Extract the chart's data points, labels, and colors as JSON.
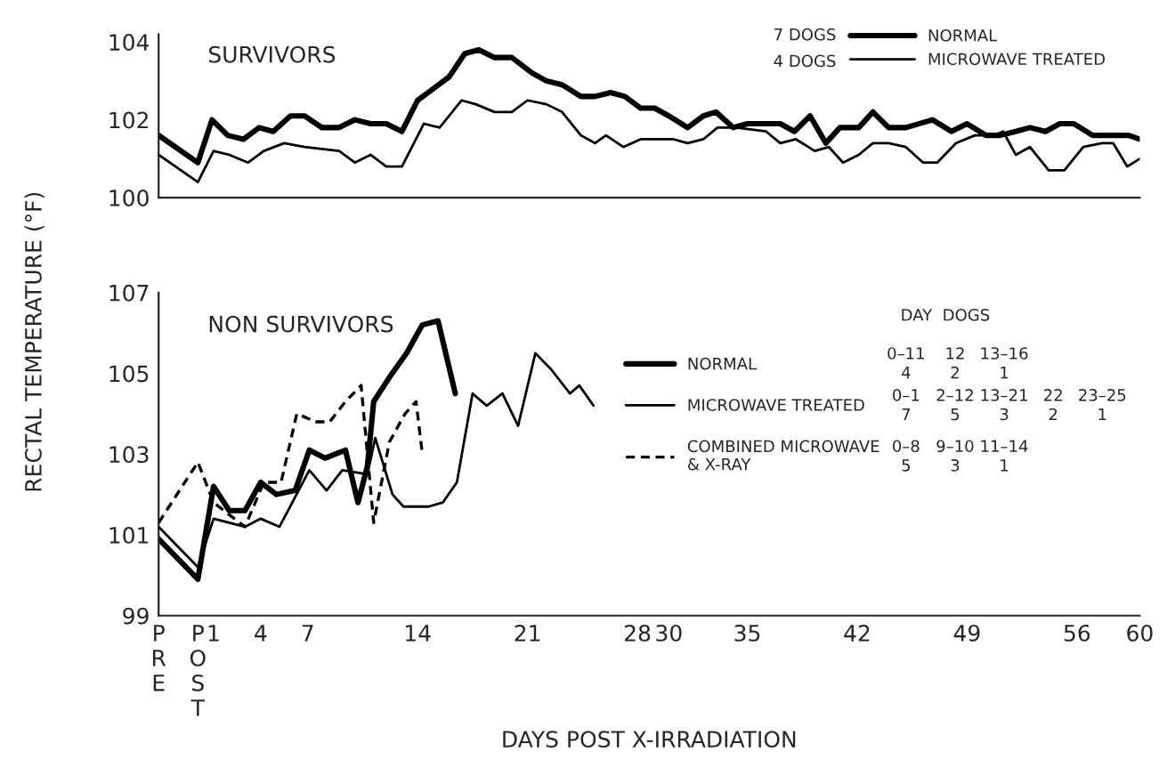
{
  "chart_data": [
    {
      "type": "line",
      "title": "SURVIVORS",
      "ylabel": "RECTAL TEMPERATURE (°F)",
      "xlim": [
        -2.5,
        60
      ],
      "ylim": [
        100,
        104.2
      ],
      "yticks": [
        100,
        102,
        104
      ],
      "tick_labels": "y",
      "grid": false,
      "legend": "top right",
      "marker": "none",
      "annotations": [
        "7 DOGS",
        "4 DOGS"
      ],
      "series": [
        {
          "name": "NORMAL",
          "color": "#000000",
          "line_style": "solid",
          "x": [
            -2.5,
            0,
            0.9,
            1.9,
            2.9,
            3.9,
            4.8,
            5.9,
            6.8,
            7.9,
            9,
            10,
            11,
            12,
            13,
            14,
            15,
            16,
            17,
            17.9,
            18.9,
            20,
            21.3,
            22.2,
            23.2,
            24.4,
            25.3,
            26.3,
            27.2,
            28.2,
            29.1,
            30,
            31.2,
            32.2,
            33,
            34.1,
            35,
            36.2,
            37.1,
            38,
            39,
            40,
            40.9,
            42.1,
            43,
            44,
            45.1,
            46.8,
            48,
            49,
            50.2,
            51.1,
            52.1,
            53,
            54,
            54.9,
            55.8,
            57,
            58.2,
            59.3,
            60
          ],
          "values": [
            101.6,
            100.9,
            102.0,
            101.6,
            101.5,
            101.8,
            101.7,
            102.1,
            102.1,
            101.8,
            101.8,
            102.0,
            101.9,
            101.9,
            101.7,
            102.5,
            102.8,
            103.1,
            103.7,
            103.8,
            103.6,
            103.6,
            103.2,
            103.0,
            102.9,
            102.6,
            102.6,
            102.7,
            102.6,
            102.3,
            102.3,
            102.1,
            101.8,
            102.1,
            102.2,
            101.8,
            101.9,
            101.9,
            101.9,
            101.7,
            102.1,
            101.4,
            101.8,
            101.8,
            102.2,
            101.8,
            101.8,
            102.0,
            101.7,
            101.9,
            101.6,
            101.6,
            101.7,
            101.8,
            101.7,
            101.9,
            101.9,
            101.6,
            101.6,
            101.6,
            101.5
          ]
        },
        {
          "name": "MICROWAVE TREATED",
          "color": "#000000",
          "line_style": "solid",
          "x": [
            -2.5,
            0,
            1,
            2,
            3.2,
            4.2,
            5.5,
            6.8,
            9,
            10,
            11,
            12,
            13,
            14.4,
            15.4,
            16.8,
            17.7,
            18.9,
            20,
            21,
            22.2,
            23.2,
            24.4,
            25.3,
            26,
            27.1,
            28.2,
            29.3,
            30.3,
            31.2,
            32.2,
            33.1,
            34.3,
            36.2,
            37.1,
            38.1,
            39.3,
            40.2,
            41.1,
            42.1,
            43,
            44,
            45.1,
            46.2,
            47.1,
            48.3,
            49.5,
            50.7,
            51.3,
            52.1,
            53,
            54.2,
            55.2,
            56.4,
            57.6,
            58.3,
            59.2,
            60
          ],
          "values": [
            101.1,
            100.4,
            101.2,
            101.1,
            100.9,
            101.2,
            101.4,
            101.3,
            101.2,
            100.9,
            101.1,
            100.8,
            100.8,
            101.9,
            101.8,
            102.5,
            102.4,
            102.2,
            102.2,
            102.5,
            102.4,
            102.2,
            101.6,
            101.4,
            101.6,
            101.3,
            101.5,
            101.5,
            101.5,
            101.4,
            101.5,
            101.8,
            101.8,
            101.7,
            101.4,
            101.5,
            101.2,
            101.3,
            100.9,
            101.1,
            101.4,
            101.4,
            101.3,
            100.9,
            100.9,
            101.4,
            101.6,
            101.6,
            101.7,
            101.1,
            101.3,
            100.7,
            100.7,
            101.3,
            101.4,
            101.4,
            100.8,
            101.0
          ]
        }
      ]
    },
    {
      "type": "line",
      "title": "NON SURVIVORS",
      "xlabel": "DAYS POST X-IRRADIATION",
      "xlim": [
        -2.5,
        60
      ],
      "ylim": [
        99,
        107
      ],
      "yticks": [
        99,
        101,
        103,
        105,
        107
      ],
      "xticks": [
        {
          "value": -2.5,
          "label": "PRE"
        },
        {
          "value": 0,
          "label": "POST"
        },
        1,
        4,
        7,
        14,
        21,
        28,
        30,
        35,
        42,
        49,
        56,
        60
      ],
      "grid": false,
      "legend": "right",
      "marker": "none",
      "legend_title": "DAY  DOGS",
      "annotations": [
        "0–11\n4",
        "12\n2",
        "13–16\n1",
        "0–1\n7",
        "2–12\n5",
        "13–21\n3",
        "22\n2",
        "23–25\n1",
        "0–8\n5",
        "9–10\n3",
        "11–14\n1"
      ],
      "series": [
        {
          "name": "NORMAL",
          "color": "#000000",
          "line_style": "solid",
          "x": [
            -2.5,
            0,
            1,
            2,
            3,
            4,
            5,
            6.2,
            7.1,
            8.1,
            9.4,
            10.2,
            10.8,
            11.2,
            12.2,
            13.3,
            14.3,
            15.3,
            16.4
          ],
          "values": [
            100.9,
            99.9,
            102.2,
            101.6,
            101.6,
            102.3,
            102.0,
            102.1,
            103.1,
            102.9,
            103.1,
            101.8,
            102.7,
            104.3,
            104.9,
            105.5,
            106.2,
            106.3,
            104.5
          ]
        },
        {
          "name": "MICROWAVE TREATED",
          "color": "#000000",
          "line_style": "solid",
          "x": [
            -2.5,
            0,
            1,
            3,
            4,
            5.2,
            7.1,
            8.2,
            9.2,
            10.8,
            11.3,
            12.4,
            13.1,
            14.7,
            15.6,
            16.5,
            17.5,
            18.4,
            19.4,
            20.4,
            21.5,
            22.5,
            23.7,
            24.3,
            25.2
          ],
          "values": [
            101.2,
            100.2,
            101.4,
            101.2,
            101.4,
            101.2,
            102.6,
            102.1,
            102.6,
            102.5,
            103.4,
            102.0,
            101.7,
            101.7,
            101.8,
            102.3,
            104.5,
            104.2,
            104.5,
            103.7,
            105.5,
            105.1,
            104.5,
            104.7,
            104.2
          ]
        },
        {
          "name": "COMBINED MICROWAVE\n& X-RAY",
          "color": "#000000",
          "line_style": "dashed",
          "x": [
            -2.5,
            0,
            1,
            2,
            3,
            4.2,
            5.3,
            6.3,
            7.5,
            8.4,
            9.4,
            10.4,
            11.2,
            12.2,
            13.2,
            13.9,
            14.3
          ],
          "values": [
            101.3,
            102.8,
            101.8,
            101.5,
            101.2,
            102.3,
            102.3,
            104.0,
            103.8,
            103.8,
            104.3,
            104.7,
            101.3,
            103.3,
            104.0,
            104.3,
            103.0
          ]
        }
      ]
    }
  ]
}
